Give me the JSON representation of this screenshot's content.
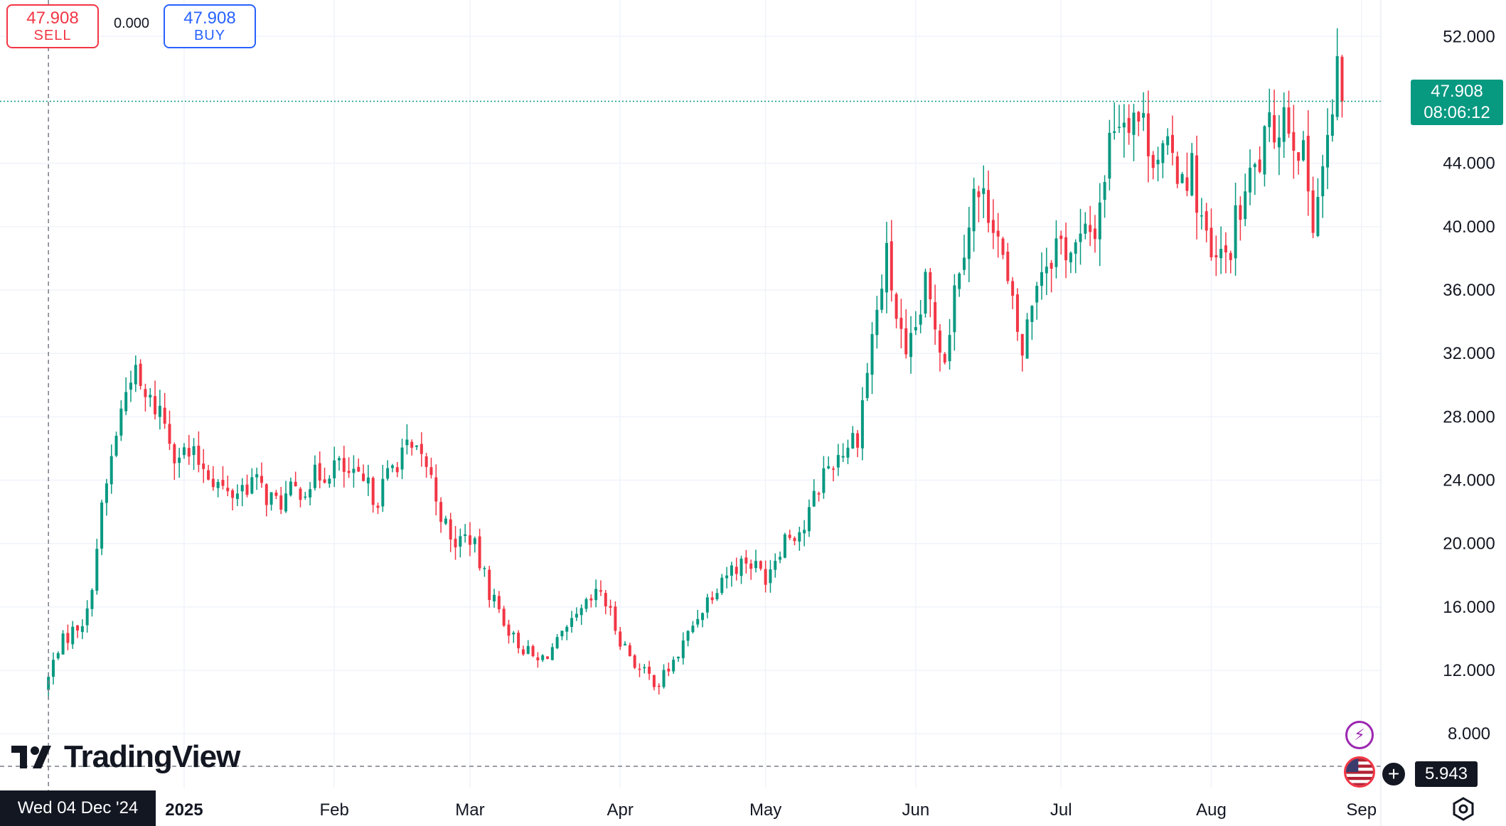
{
  "trade": {
    "sell_price": "47.908",
    "sell_label": "SELL",
    "spread": "0.000",
    "buy_price": "47.908",
    "buy_label": "BUY"
  },
  "price_tag": {
    "price": "47.908",
    "countdown": "08:06:12"
  },
  "low_tag": "5.943",
  "crosshair_date": "Wed 04 Dec '24",
  "logo_text": "TradingView",
  "icons": [
    "bolt-icon",
    "us-flag-icon",
    "plus-icon",
    "settings-icon"
  ],
  "colors": {
    "up": "#089981",
    "down": "#f23645",
    "grid": "#f0f3fa",
    "text": "#131722"
  },
  "chart_data": {
    "type": "candlestick",
    "y_ticks": [
      "52.000",
      "44.000",
      "40.000",
      "36.000",
      "32.000",
      "28.000",
      "24.000",
      "20.000",
      "16.000",
      "12.000",
      "8.000"
    ],
    "y_tick_values": [
      52,
      44,
      40,
      36,
      32,
      28,
      24,
      20,
      16,
      12,
      8
    ],
    "ylim": [
      4.6,
      54.3
    ],
    "x_ticks": [
      "2025",
      "Feb",
      "Mar",
      "Apr",
      "May",
      "Jun",
      "Jul",
      "Aug",
      "Sep"
    ],
    "x_tick_dates": [
      "2025-01-01",
      "2025-02-01",
      "2025-03-01",
      "2025-04-01",
      "2025-05-01",
      "2025-06-01",
      "2025-07-01",
      "2025-08-01",
      "2025-09-01"
    ],
    "xlim": [
      "2024-11-24",
      "2025-09-05"
    ],
    "first_date": "2024-12-04",
    "last_price": 47.908,
    "low_marker": 5.943,
    "ohlc_close_path": [
      [
        "2024-12-04",
        11.5
      ],
      [
        "2024-12-06",
        13.5
      ],
      [
        "2024-12-09",
        14.5
      ],
      [
        "2024-12-12",
        15.5
      ],
      [
        "2024-12-15",
        22
      ],
      [
        "2024-12-18",
        27
      ],
      [
        "2024-12-21",
        31
      ],
      [
        "2024-12-24",
        29
      ],
      [
        "2024-12-27",
        28.5
      ],
      [
        "2024-12-30",
        26
      ],
      [
        "2025-01-05",
        25
      ],
      [
        "2025-01-10",
        23
      ],
      [
        "2025-01-15",
        24
      ],
      [
        "2025-01-20",
        22.5
      ],
      [
        "2025-01-25",
        23.5
      ],
      [
        "2025-02-01",
        25
      ],
      [
        "2025-02-05",
        24
      ],
      [
        "2025-02-10",
        23
      ],
      [
        "2025-02-15",
        26
      ],
      [
        "2025-02-20",
        25
      ],
      [
        "2025-02-25",
        20
      ],
      [
        "2025-03-01",
        20.5
      ],
      [
        "2025-03-05",
        17
      ],
      [
        "2025-03-10",
        14
      ],
      [
        "2025-03-15",
        12.5
      ],
      [
        "2025-03-20",
        14
      ],
      [
        "2025-03-25",
        16
      ],
      [
        "2025-03-28",
        17
      ],
      [
        "2025-04-01",
        14
      ],
      [
        "2025-04-05",
        12
      ],
      [
        "2025-04-09",
        11.2
      ],
      [
        "2025-04-13",
        13
      ],
      [
        "2025-04-17",
        15.5
      ],
      [
        "2025-04-22",
        18
      ],
      [
        "2025-04-27",
        19
      ],
      [
        "2025-05-01",
        18
      ],
      [
        "2025-05-05",
        20.5
      ],
      [
        "2025-05-09",
        21
      ],
      [
        "2025-05-13",
        24.5
      ],
      [
        "2025-05-17",
        26
      ],
      [
        "2025-05-20",
        27
      ],
      [
        "2025-05-23",
        33
      ],
      [
        "2025-05-26",
        38
      ],
      [
        "2025-05-30",
        31
      ],
      [
        "2025-06-03",
        36
      ],
      [
        "2025-06-07",
        32
      ],
      [
        "2025-06-10",
        38
      ],
      [
        "2025-06-13",
        42
      ],
      [
        "2025-06-17",
        41
      ],
      [
        "2025-06-20",
        36
      ],
      [
        "2025-06-23",
        32
      ],
      [
        "2025-06-26",
        37
      ],
      [
        "2025-06-30",
        39
      ],
      [
        "2025-07-04",
        38.5
      ],
      [
        "2025-07-08",
        40
      ],
      [
        "2025-07-12",
        47
      ],
      [
        "2025-07-16",
        47.5
      ],
      [
        "2025-07-20",
        45
      ],
      [
        "2025-07-24",
        44
      ],
      [
        "2025-07-28",
        43.5
      ],
      [
        "2025-08-01",
        37.5
      ],
      [
        "2025-08-04",
        38
      ],
      [
        "2025-08-08",
        42
      ],
      [
        "2025-08-12",
        45
      ],
      [
        "2025-08-16",
        47.5
      ],
      [
        "2025-08-19",
        45.5
      ],
      [
        "2025-08-22",
        41
      ],
      [
        "2025-08-25",
        45
      ],
      [
        "2025-08-27",
        49
      ],
      [
        "2025-08-28",
        47.908
      ]
    ]
  }
}
